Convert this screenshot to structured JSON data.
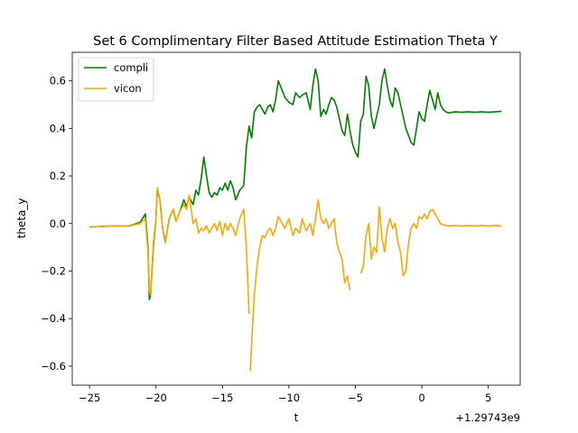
{
  "chart_data": {
    "type": "line",
    "title": "Set 6 Complimentary Filter Based Attitude Estimation Theta Y",
    "xlabel": "t",
    "ylabel": "theta_y",
    "x_offset_label": "+1.29743e9",
    "xlim": [
      -26.3,
      7.4
    ],
    "ylim": [
      -0.68,
      0.72
    ],
    "x_ticks": [
      -25,
      -20,
      -15,
      -10,
      -5,
      0,
      5
    ],
    "x_tick_labels": [
      "−25",
      "−20",
      "−15",
      "−10",
      "−5",
      "0",
      "5"
    ],
    "y_ticks": [
      -0.6,
      -0.4,
      -0.2,
      0.0,
      0.2,
      0.4,
      0.6
    ],
    "y_tick_labels": [
      "−0.6",
      "−0.4",
      "−0.2",
      "0.0",
      "0.2",
      "0.4",
      "0.6"
    ],
    "grid": false,
    "legend_position": "top-left",
    "series": [
      {
        "name": "compli",
        "color": "#008000",
        "x": [
          -25.0,
          -24.0,
          -23.0,
          -22.0,
          -21.2,
          -20.8,
          -20.6,
          -20.5,
          -20.4,
          -20.2,
          -20.0,
          -19.9,
          -19.7,
          -19.5,
          -19.3,
          -19.0,
          -18.7,
          -18.5,
          -18.2,
          -17.9,
          -17.7,
          -17.5,
          -17.2,
          -17.0,
          -16.8,
          -16.6,
          -16.4,
          -16.2,
          -16.0,
          -15.8,
          -15.6,
          -15.4,
          -15.2,
          -15.0,
          -14.8,
          -14.6,
          -14.4,
          -14.2,
          -14.0,
          -13.7,
          -13.4,
          -13.2,
          -13.0,
          -12.8,
          -12.6,
          -12.4,
          -12.2,
          -12.0,
          -11.8,
          -11.6,
          -11.4,
          -11.2,
          -11.0,
          -10.8,
          -10.5,
          -10.3,
          -10.0,
          -9.7,
          -9.5,
          -9.2,
          -9.0,
          -8.7,
          -8.4,
          -8.2,
          -8.0,
          -7.8,
          -7.6,
          -7.4,
          -7.2,
          -7.0,
          -6.8,
          -6.6,
          -6.4,
          -6.2,
          -6.0,
          -5.8,
          -5.6,
          -5.4,
          -5.2,
          -5.0,
          -4.8,
          -4.6,
          -4.4,
          -4.2,
          -4.0,
          -3.8,
          -3.6,
          -3.4,
          -3.2,
          -3.0,
          -2.8,
          -2.6,
          -2.4,
          -2.2,
          -2.0,
          -1.8,
          -1.6,
          -1.4,
          -1.2,
          -1.0,
          -0.8,
          -0.6,
          -0.4,
          -0.2,
          0.0,
          0.2,
          0.4,
          0.6,
          0.8,
          1.0,
          1.2,
          1.4,
          1.6,
          1.8,
          2.0,
          2.5,
          3.0,
          3.5,
          4.0,
          4.5,
          5.0,
          5.5,
          6.0
        ],
        "values": [
          -0.015,
          -0.012,
          -0.01,
          -0.01,
          0.005,
          0.04,
          -0.1,
          -0.32,
          -0.3,
          -0.1,
          0.02,
          0.14,
          0.1,
          -0.02,
          -0.08,
          0.02,
          0.06,
          0.01,
          0.05,
          0.1,
          0.07,
          0.11,
          0.08,
          0.14,
          0.12,
          0.19,
          0.28,
          0.2,
          0.13,
          0.11,
          0.13,
          0.12,
          0.15,
          0.14,
          0.17,
          0.14,
          0.18,
          0.15,
          0.1,
          0.14,
          0.16,
          0.32,
          0.41,
          0.36,
          0.47,
          0.49,
          0.5,
          0.48,
          0.46,
          0.49,
          0.5,
          0.47,
          0.52,
          0.6,
          0.56,
          0.53,
          0.51,
          0.5,
          0.55,
          0.53,
          0.54,
          0.55,
          0.48,
          0.58,
          0.65,
          0.6,
          0.45,
          0.48,
          0.46,
          0.5,
          0.53,
          0.52,
          0.49,
          0.44,
          0.39,
          0.37,
          0.46,
          0.39,
          0.33,
          0.3,
          0.28,
          0.43,
          0.46,
          0.62,
          0.58,
          0.45,
          0.4,
          0.45,
          0.5,
          0.6,
          0.65,
          0.58,
          0.52,
          0.49,
          0.57,
          0.55,
          0.5,
          0.45,
          0.4,
          0.37,
          0.34,
          0.33,
          0.4,
          0.47,
          0.44,
          0.43,
          0.5,
          0.56,
          0.52,
          0.48,
          0.55,
          0.5,
          0.48,
          0.47,
          0.465,
          0.47,
          0.468,
          0.47,
          0.468,
          0.47,
          0.468,
          0.47,
          0.472
        ]
      },
      {
        "name": "vicon",
        "color": "#ffa500",
        "segments": [
          {
            "x": [
              -25.0,
              -24.0,
              -23.0,
              -22.0,
              -21.2,
              -20.8,
              -20.6,
              -20.5,
              -20.4,
              -20.2,
              -20.0,
              -19.9,
              -19.7,
              -19.5,
              -19.3,
              -19.0,
              -18.7,
              -18.5,
              -18.2,
              -17.9,
              -17.7,
              -17.5,
              -17.2,
              -17.0,
              -16.8,
              -16.6,
              -16.4,
              -16.2,
              -16.0,
              -15.8,
              -15.6,
              -15.4,
              -15.2,
              -15.0,
              -14.8,
              -14.6,
              -14.4,
              -14.2,
              -14.0,
              -13.7,
              -13.4,
              -13.2,
              -13.0
            ],
            "values": [
              -0.015,
              -0.012,
              -0.01,
              -0.01,
              0.0,
              0.02,
              -0.12,
              -0.28,
              -0.3,
              -0.08,
              0.02,
              0.15,
              0.1,
              -0.02,
              -0.08,
              0.02,
              0.06,
              0.01,
              0.05,
              0.08,
              0.06,
              0.12,
              0.0,
              0.02,
              -0.04,
              -0.02,
              -0.03,
              -0.01,
              -0.04,
              -0.02,
              0.0,
              -0.03,
              0.01,
              -0.05,
              0.0,
              -0.03,
              0.0,
              -0.02,
              -0.05,
              0.02,
              0.06,
              -0.1,
              -0.38
            ]
          },
          {
            "x": [
              -12.9,
              -12.8,
              -12.6,
              -12.4,
              -12.2,
              -12.0,
              -11.8,
              -11.6,
              -11.4,
              -11.2,
              -11.0,
              -10.8,
              -10.5,
              -10.3,
              -10.0,
              -9.7,
              -9.5,
              -9.2,
              -9.0,
              -8.7,
              -8.4,
              -8.2,
              -8.0,
              -7.8,
              -7.6,
              -7.4,
              -7.2,
              -7.0,
              -6.8,
              -6.6,
              -6.4,
              -6.2,
              -6.0,
              -5.8,
              -5.6,
              -5.4
            ],
            "values": [
              -0.62,
              -0.5,
              -0.3,
              -0.18,
              -0.1,
              -0.05,
              -0.06,
              -0.03,
              -0.02,
              -0.05,
              -0.02,
              0.03,
              0.0,
              -0.02,
              0.02,
              -0.05,
              -0.02,
              -0.04,
              0.02,
              -0.03,
              0.0,
              -0.05,
              0.02,
              0.1,
              0.02,
              0.0,
              0.02,
              -0.02,
              0.0,
              0.02,
              -0.08,
              -0.12,
              -0.15,
              -0.25,
              -0.22,
              -0.28
            ]
          },
          {
            "x": [
              -4.6,
              -4.4,
              -4.2,
              -4.0,
              -3.8,
              -3.6,
              -3.4,
              -3.2,
              -3.0,
              -2.8,
              -2.6,
              -2.4,
              -2.2,
              -2.0,
              -1.8,
              -1.6,
              -1.4,
              -1.2,
              -1.0,
              -0.8,
              -0.6,
              -0.4,
              -0.2,
              0.0,
              0.2,
              0.4,
              0.6,
              0.8,
              1.0,
              1.2,
              1.4,
              1.6,
              1.8,
              2.0,
              2.5,
              3.0,
              3.5,
              4.0,
              4.5,
              5.0,
              5.5,
              6.0
            ],
            "values": [
              -0.21,
              -0.18,
              -0.05,
              0.0,
              -0.15,
              -0.1,
              -0.12,
              0.07,
              -0.06,
              -0.12,
              -0.02,
              0.02,
              -0.02,
              0.0,
              -0.08,
              -0.12,
              -0.22,
              -0.2,
              -0.08,
              -0.02,
              0.0,
              -0.02,
              0.03,
              0.02,
              0.04,
              0.02,
              0.05,
              0.06,
              0.04,
              0.02,
              0.0,
              -0.005,
              -0.008,
              -0.01,
              -0.008,
              -0.01,
              -0.008,
              -0.01,
              -0.008,
              -0.01,
              -0.008,
              -0.01
            ]
          }
        ]
      }
    ]
  }
}
